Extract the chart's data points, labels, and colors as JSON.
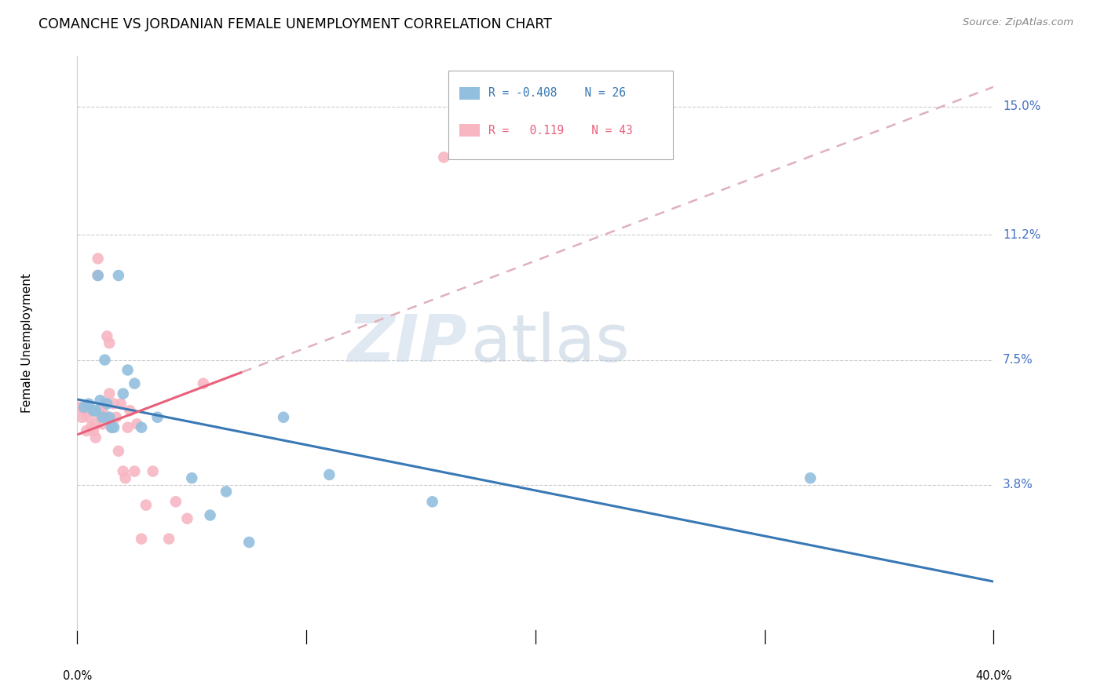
{
  "title": "COMANCHE VS JORDANIAN FEMALE UNEMPLOYMENT CORRELATION CHART",
  "source": "Source: ZipAtlas.com",
  "ylabel": "Female Unemployment",
  "ytick_values": [
    0.038,
    0.075,
    0.112,
    0.15
  ],
  "ytick_labels": [
    "3.8%",
    "7.5%",
    "11.2%",
    "15.0%"
  ],
  "xlim": [
    0.0,
    0.4
  ],
  "ylim": [
    -0.005,
    0.165
  ],
  "comanche_color": "#92bfde",
  "jordanian_color": "#f7b6c2",
  "comanche_line_color": "#3878b4",
  "jordanian_line_color": "#e8607a",
  "jordanian_dashed_color": "#e0b0bc",
  "comanche_x": [
    0.003,
    0.005,
    0.007,
    0.008,
    0.009,
    0.01,
    0.011,
    0.012,
    0.013,
    0.014,
    0.015,
    0.016,
    0.018,
    0.02,
    0.022,
    0.025,
    0.028,
    0.035,
    0.05,
    0.058,
    0.065,
    0.075,
    0.09,
    0.11,
    0.155,
    0.32
  ],
  "comanche_y": [
    0.061,
    0.062,
    0.06,
    0.06,
    0.1,
    0.063,
    0.058,
    0.075,
    0.062,
    0.058,
    0.055,
    0.055,
    0.1,
    0.065,
    0.072,
    0.068,
    0.055,
    0.058,
    0.04,
    0.029,
    0.036,
    0.021,
    0.058,
    0.041,
    0.033,
    0.04
  ],
  "jordanian_x": [
    0.001,
    0.002,
    0.003,
    0.004,
    0.005,
    0.005,
    0.006,
    0.006,
    0.007,
    0.007,
    0.008,
    0.008,
    0.009,
    0.009,
    0.01,
    0.01,
    0.011,
    0.011,
    0.012,
    0.012,
    0.013,
    0.013,
    0.014,
    0.014,
    0.015,
    0.016,
    0.017,
    0.018,
    0.019,
    0.02,
    0.021,
    0.022,
    0.023,
    0.025,
    0.026,
    0.028,
    0.03,
    0.033,
    0.04,
    0.043,
    0.048,
    0.055,
    0.16
  ],
  "jordanian_y": [
    0.061,
    0.058,
    0.06,
    0.054,
    0.058,
    0.06,
    0.055,
    0.06,
    0.054,
    0.06,
    0.052,
    0.056,
    0.105,
    0.1,
    0.06,
    0.058,
    0.06,
    0.056,
    0.062,
    0.058,
    0.058,
    0.082,
    0.08,
    0.065,
    0.055,
    0.062,
    0.058,
    0.048,
    0.062,
    0.042,
    0.04,
    0.055,
    0.06,
    0.042,
    0.056,
    0.022,
    0.032,
    0.042,
    0.022,
    0.033,
    0.028,
    0.068,
    0.135
  ],
  "watermark_zip": "ZIP",
  "watermark_atlas": "atlas",
  "background_color": "#ffffff",
  "grid_color": "#cccccc",
  "label_color": "#4472c4"
}
